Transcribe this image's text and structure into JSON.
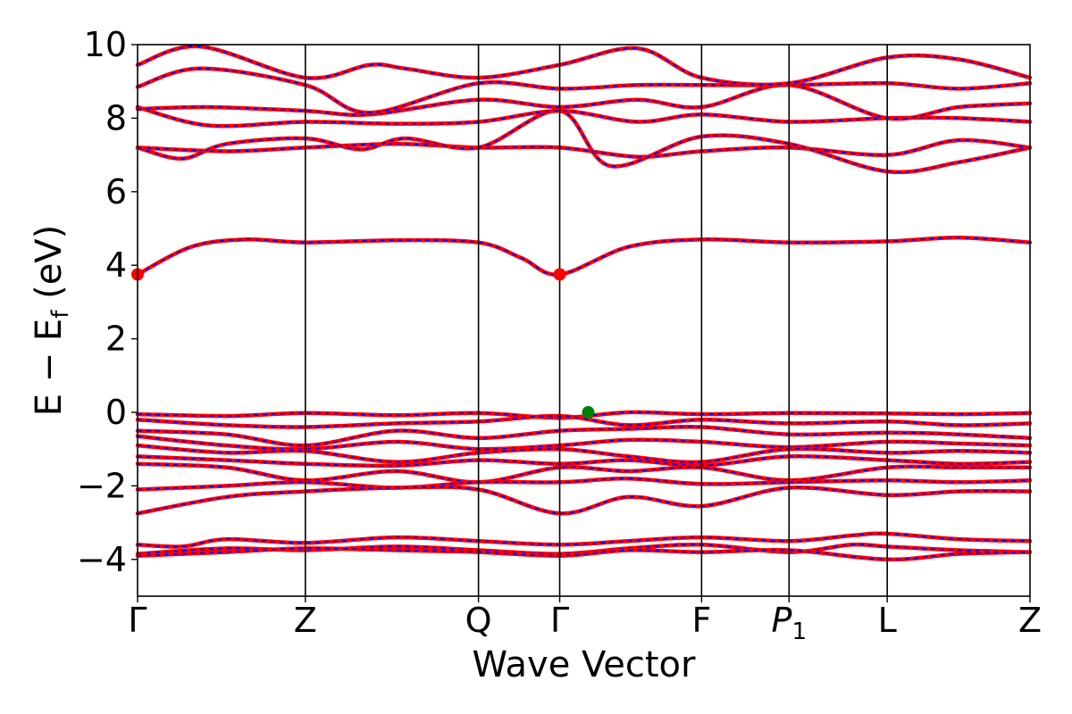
{
  "chart_data": {
    "type": "line",
    "xlabel": "Wave Vector",
    "ylabel": "E − E",
    "ylabel_sub": "f",
    "ylabel_unit": " (eV)",
    "ylim": [
      -5,
      10
    ],
    "yticks": [
      -4,
      -2,
      0,
      2,
      4,
      6,
      8,
      10
    ],
    "ytick_labels": [
      "−4",
      "−2",
      "0",
      "2",
      "4",
      "6",
      "8",
      "10"
    ],
    "xlim": [
      0,
      1
    ],
    "kpath": [
      {
        "label": "Γ",
        "x": 0.0
      },
      {
        "label": "Z",
        "x": 0.188
      },
      {
        "label": "Q",
        "x": 0.382
      },
      {
        "label": "Γ",
        "x": 0.473
      },
      {
        "label": "F",
        "x": 0.632
      },
      {
        "label": "P",
        "sub": "1",
        "x": 0.73
      },
      {
        "label": "L",
        "x": 0.84
      },
      {
        "label": "Z",
        "x": 1.0
      }
    ],
    "grid": false,
    "band_style": {
      "main_color": "#ff0000",
      "overlay_color": "#0000ff",
      "overlay_dashed": true
    },
    "series": [
      {
        "x": [
          0,
          0.06,
          0.12,
          0.188,
          0.29,
          0.382,
          0.43,
          0.473,
          0.55,
          0.632,
          0.73,
          0.84,
          0.92,
          1.0
        ],
        "values": [
          3.75,
          4.5,
          4.7,
          4.62,
          4.68,
          4.62,
          4.2,
          3.75,
          4.5,
          4.7,
          4.62,
          4.65,
          4.75,
          4.62
        ]
      },
      {
        "x": [
          0,
          0.1,
          0.188,
          0.29,
          0.382,
          0.473,
          0.56,
          0.632,
          0.73,
          0.84,
          0.92,
          1.0
        ],
        "values": [
          7.2,
          7.1,
          7.2,
          7.3,
          7.2,
          7.2,
          6.95,
          7.1,
          7.2,
          7.0,
          7.4,
          7.2
        ]
      },
      {
        "x": [
          0,
          0.05,
          0.1,
          0.188,
          0.25,
          0.3,
          0.382,
          0.473,
          0.53,
          0.632,
          0.73,
          0.84,
          0.92,
          1.0
        ],
        "values": [
          7.2,
          6.9,
          7.3,
          7.45,
          7.15,
          7.45,
          7.2,
          8.2,
          6.7,
          7.5,
          7.3,
          6.55,
          6.8,
          7.2
        ]
      },
      {
        "x": [
          0,
          0.08,
          0.188,
          0.29,
          0.382,
          0.473,
          0.56,
          0.632,
          0.73,
          0.84,
          0.92,
          1.0
        ],
        "values": [
          8.3,
          7.8,
          7.9,
          7.85,
          7.9,
          8.2,
          7.9,
          8.1,
          7.9,
          8.0,
          8.0,
          7.9
        ]
      },
      {
        "x": [
          0,
          0.08,
          0.188,
          0.26,
          0.382,
          0.473,
          0.56,
          0.632,
          0.73,
          0.84,
          0.92,
          1.0
        ],
        "values": [
          8.25,
          8.3,
          8.2,
          8.1,
          8.5,
          8.3,
          8.5,
          8.3,
          8.9,
          8.0,
          8.3,
          8.4
        ]
      },
      {
        "x": [
          0,
          0.07,
          0.188,
          0.26,
          0.382,
          0.473,
          0.56,
          0.632,
          0.73,
          0.84,
          0.92,
          1.0
        ],
        "values": [
          8.85,
          9.35,
          8.9,
          8.15,
          8.95,
          8.8,
          8.9,
          8.9,
          8.9,
          8.95,
          8.8,
          8.95
        ]
      },
      {
        "x": [
          0,
          0.07,
          0.188,
          0.26,
          0.3,
          0.382,
          0.473,
          0.56,
          0.632,
          0.73,
          0.84,
          0.92,
          1.0
        ],
        "values": [
          9.45,
          9.95,
          9.1,
          9.45,
          9.35,
          9.1,
          9.45,
          9.9,
          9.1,
          8.95,
          9.65,
          9.6,
          9.1
        ]
      },
      {
        "x": [
          0,
          0.1,
          0.188,
          0.29,
          0.382,
          0.473,
          0.55,
          0.632,
          0.73,
          0.84,
          0.92,
          1.0
        ],
        "values": [
          -0.05,
          -0.1,
          -0.02,
          -0.08,
          -0.02,
          -0.15,
          0.0,
          -0.05,
          -0.02,
          -0.03,
          -0.05,
          -0.02
        ]
      },
      {
        "x": [
          0,
          0.1,
          0.188,
          0.29,
          0.382,
          0.473,
          0.55,
          0.632,
          0.73,
          0.84,
          0.92,
          1.0
        ],
        "values": [
          -0.2,
          -0.35,
          -0.4,
          -0.3,
          -0.25,
          -0.1,
          -0.35,
          -0.2,
          -0.3,
          -0.25,
          -0.35,
          -0.3
        ]
      },
      {
        "x": [
          0,
          0.1,
          0.188,
          0.29,
          0.382,
          0.473,
          0.55,
          0.632,
          0.73,
          0.84,
          0.92,
          1.0
        ],
        "values": [
          -0.5,
          -0.6,
          -0.9,
          -0.5,
          -0.7,
          -0.5,
          -0.45,
          -0.4,
          -0.6,
          -0.55,
          -0.6,
          -0.7
        ]
      },
      {
        "x": [
          0,
          0.1,
          0.188,
          0.29,
          0.382,
          0.473,
          0.55,
          0.632,
          0.73,
          0.84,
          0.92,
          1.0
        ],
        "values": [
          -0.65,
          -0.9,
          -1.0,
          -0.8,
          -1.0,
          -0.9,
          -0.75,
          -0.8,
          -0.95,
          -0.8,
          -0.85,
          -0.9
        ]
      },
      {
        "x": [
          0,
          0.1,
          0.188,
          0.29,
          0.382,
          0.473,
          0.55,
          0.632,
          0.73,
          0.84,
          0.92,
          1.0
        ],
        "values": [
          -0.9,
          -1.1,
          -1.05,
          -1.35,
          -1.1,
          -1.0,
          -1.2,
          -1.35,
          -1.0,
          -1.1,
          -1.05,
          -1.1
        ]
      },
      {
        "x": [
          0,
          0.1,
          0.188,
          0.29,
          0.382,
          0.473,
          0.55,
          0.632,
          0.73,
          0.84,
          0.92,
          1.0
        ],
        "values": [
          -1.2,
          -1.3,
          -1.4,
          -1.45,
          -1.3,
          -1.4,
          -1.3,
          -1.45,
          -1.2,
          -1.3,
          -1.4,
          -1.35
        ]
      },
      {
        "x": [
          0,
          0.1,
          0.188,
          0.29,
          0.382,
          0.473,
          0.55,
          0.632,
          0.73,
          0.84,
          0.92,
          1.0
        ],
        "values": [
          -1.4,
          -1.5,
          -1.85,
          -1.6,
          -1.9,
          -1.5,
          -1.6,
          -1.5,
          -1.85,
          -1.5,
          -1.5,
          -1.5
        ]
      },
      {
        "x": [
          0,
          0.1,
          0.188,
          0.29,
          0.382,
          0.473,
          0.55,
          0.632,
          0.73,
          0.84,
          0.92,
          1.0
        ],
        "values": [
          -2.1,
          -2.0,
          -1.9,
          -2.05,
          -1.9,
          -1.9,
          -1.8,
          -1.95,
          -1.9,
          -1.85,
          -1.9,
          -1.85
        ]
      },
      {
        "x": [
          0,
          0.1,
          0.188,
          0.29,
          0.382,
          0.473,
          0.55,
          0.632,
          0.73,
          0.84,
          0.92,
          1.0
        ],
        "values": [
          -2.75,
          -2.3,
          -2.15,
          -2.05,
          -2.1,
          -2.75,
          -2.3,
          -2.55,
          -2.05,
          -2.25,
          -2.15,
          -2.15
        ]
      },
      {
        "x": [
          0,
          0.05,
          0.1,
          0.188,
          0.29,
          0.382,
          0.473,
          0.55,
          0.632,
          0.73,
          0.8,
          0.84,
          0.92,
          1.0
        ],
        "values": [
          -3.6,
          -3.65,
          -3.45,
          -3.55,
          -3.4,
          -3.5,
          -3.6,
          -3.5,
          -3.4,
          -3.5,
          -3.35,
          -3.3,
          -3.45,
          -3.5
        ]
      },
      {
        "x": [
          0,
          0.1,
          0.188,
          0.29,
          0.382,
          0.473,
          0.55,
          0.632,
          0.73,
          0.8,
          0.84,
          0.92,
          1.0
        ],
        "values": [
          -3.85,
          -3.7,
          -3.75,
          -3.65,
          -3.75,
          -3.85,
          -3.7,
          -3.6,
          -3.8,
          -3.6,
          -3.65,
          -3.75,
          -3.8
        ]
      },
      {
        "x": [
          0,
          0.1,
          0.188,
          0.29,
          0.382,
          0.473,
          0.55,
          0.632,
          0.73,
          0.84,
          0.92,
          1.0
        ],
        "values": [
          -3.9,
          -3.8,
          -3.7,
          -3.75,
          -3.8,
          -3.9,
          -3.75,
          -3.8,
          -3.75,
          -4.0,
          -3.85,
          -3.8
        ]
      }
    ],
    "markers": [
      {
        "x": 0.0,
        "y": 3.75,
        "color": "#ff0000"
      },
      {
        "x": 0.473,
        "y": 3.75,
        "color": "#ff0000"
      },
      {
        "x": 0.505,
        "y": 0.0,
        "color": "#008000"
      }
    ]
  }
}
